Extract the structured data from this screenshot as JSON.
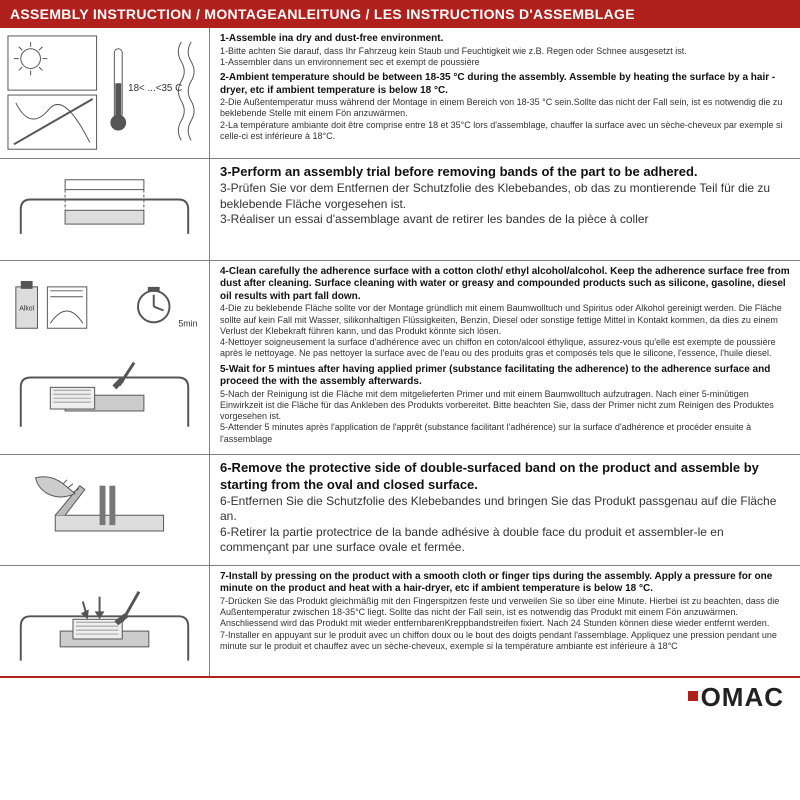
{
  "colors": {
    "header_bg": "#b0211d",
    "header_text": "#ffffff",
    "border": "#808080",
    "text": "#333333",
    "title_text": "#111111",
    "footer_accent": "#b0211d",
    "background": "#ffffff"
  },
  "typography": {
    "header_fontsize": 14,
    "title_fontsize": 10,
    "body_fontsize": 9,
    "logo_fontsize": 26
  },
  "header": {
    "title": "ASSEMBLY INSTRUCTION / MONTAGEANLEITUNG / LES INSTRUCTIONS D'ASSEMBLAGE"
  },
  "rows": [
    {
      "diagram": "temperature",
      "temp_label": "18< ...<35 C",
      "blocks": [
        {
          "title": "1-Assemble ina dry and dust-free environment.",
          "subs": [
            "1-Bitte achten Sie darauf, dass Ihr Fahrzeug kein Staub und Feuchtigkeit wie z.B. Regen oder Schnee ausgesetzt ist.",
            "1-Assembler dans un environnement sec et exempt de poussière"
          ]
        },
        {
          "title": "2-Ambient temperature should be between 18-35 °C  during the assembly. Assemble by heating the surface by a hair -dryer, etc if ambient temperature is below 18 °C.",
          "subs": [
            "2-Die Außentemperatur muss während der Montage in einem Bereich von 18-35 °C  sein.Sollte das nicht der Fall sein, ist es notwendig die zu beklebende Stelle mit einem Fön anzuwärmen.",
            "2-La température ambiante doit être comprise entre 18 et 35°C lors d'assemblage, chauffer la surface avec un sèche-cheveux par exemple si celle-ci est inférieure à 18°C."
          ]
        }
      ]
    },
    {
      "diagram": "trial",
      "blocks": [
        {
          "title": "3-Perform an assembly trial before removing bands of the part to be adhered.",
          "title_large": true,
          "subs": [
            "3-Prüfen Sie vor dem Entfernen der Schutzfolie des Klebebandes, ob das zu montierende Teil für die zu beklebende Fläche vorgesehen ist.",
            "3-Réaliser un essai d'assemblage avant de retirer les bandes de la pièce à coller"
          ]
        }
      ]
    },
    {
      "diagram": "clean",
      "timer_label": "5min",
      "bottle_label": "Alkol",
      "blocks": [
        {
          "title": "4-Clean carefully the adherence surface with a cotton cloth/ ethyl alcohol/alcohol. Keep the adherence surface free from dust after cleaning. Surface cleaning with water or greasy and compounded products such as silicone, gasoline, diesel oil results with part fall down.",
          "subs": [
            "4-Die zu beklebende Fläche sollte vor der Montage gründlich mit einem Baumwolltuch und Spiritus oder Alkohol gereinigt werden. Die Fläche sollte auf kein Fall mit Wasser, silikonhaltigen Flüssigkeiten, Benzin, Diesel oder sonstige fettige Mittel in Kontakt kommen, da dies zu einem Verlust der Klebekraft führen kann, und das Produkt könnte sich lösen.",
            "4-Nettoyer soigneusement la surface d'adhérence avec un chiffon en coton/alcool éthylique, assurez-vous qu'elle est exempte de poussière après le nettoyage. Ne pas nettoyer la surface avec de l'eau ou des produits gras et composés tels que le silicone, l'essence, l'huile diesel."
          ]
        },
        {
          "title": "5-Wait for 5 mintues after having applied primer (substance facilitating the adherence) to the adherence surface and proceed the with the assembly afterwards.",
          "subs": [
            "5-Nach der Reinigung ist die Fläche mit dem mitgelieferten Primer und mit einem Baumwolltuch aufzutragen. Nach einer 5-minütigen Einwirkzeit ist die Fläche für das Ankleben des Produkts vorbereitet. Bitte beachten Sie, dass der Primer nicht zum Reinigen des Produktes vorgesehen ist.",
            "5-Attender 5 minutes après l'application de l'apprêt (substance facilitant l'adhérence) sur la surface d'adhérence et procéder ensuite à l'assemblage"
          ]
        }
      ]
    },
    {
      "diagram": "peel",
      "blocks": [
        {
          "title": "6-Remove the protective side of double-surfaced band on the product and assemble by starting from the oval and closed surface.",
          "title_large": true,
          "subs": [
            "6-Entfernen Sie die Schutzfolie des Klebebandes und bringen Sie das Produkt passgenau auf die Fläche an.",
            "6-Retirer la partie protectrice de la bande adhésive à double face du produit et assembler-le en commençant par une surface ovale et fermée."
          ]
        }
      ]
    },
    {
      "diagram": "press",
      "blocks": [
        {
          "title": "7-Install by pressing on the product with a smooth cloth or finger tips during the assembly. Apply a pressure for one minute on the product and heat with a hair-dryer, etc if ambient temperature is below 18 °C.",
          "subs": [
            "7-Drücken Sie das Produkt gleichmäßig mit den Fingerspitzen feste und verweilen Sie so über eine Minute. Hierbei ist zu beachten, dass die Außentemperatur zwischen 18-35°C liegt. Sollte das nicht der Fall sein, ist es notwendig das Produkt mit einem Fön anzuwärmen. Anschliessend wird das Produkt mit wieder entfernbarenKreppbandstreifen fixiert. Nach 24 Stunden können diese wieder entfernt werden.",
            "7-Installer en appuyant sur le produit avec un chiffon doux ou le bout des doigts pendant l'assemblage. Appliquez une pression pendant une minute sur le produit et chauffez avec un sèche-cheveux, exemple si la température ambiante est inférieure à 18°C"
          ]
        }
      ]
    }
  ],
  "footer": {
    "logo_text": "OMAC"
  }
}
